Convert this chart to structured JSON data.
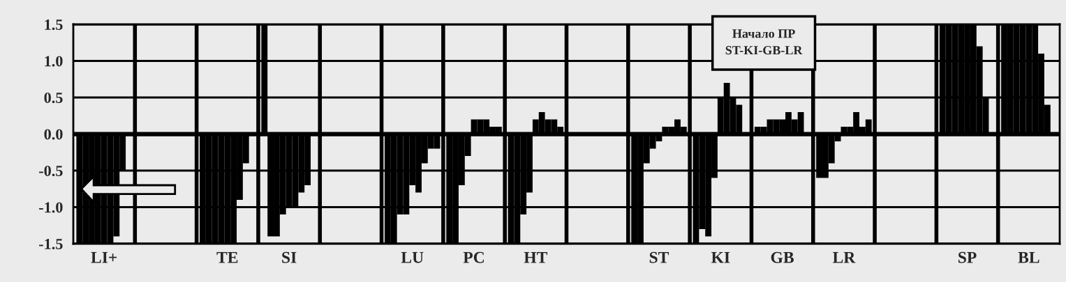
{
  "chart_data": {
    "type": "bar",
    "categories": [
      "LI+",
      null,
      "TE",
      "SI",
      null,
      "LU",
      "PC",
      "HT",
      null,
      "ST",
      "KI",
      "GB",
      "LR",
      null,
      "SP",
      "BL"
    ],
    "series": [
      {
        "color": "#000000",
        "values": [
          -1.5,
          null,
          -1.5,
          1.5,
          null,
          -1.5,
          -1.5,
          -1.5,
          null,
          -1.5,
          -1.5,
          0.1,
          -0.6,
          null,
          1.5,
          1.5
        ]
      },
      {
        "color": "#000000",
        "values": [
          -1.5,
          null,
          -1.5,
          -1.4,
          null,
          -1.5,
          -1.5,
          -1.5,
          null,
          -1.5,
          -1.3,
          0.1,
          -0.6,
          null,
          1.5,
          1.5
        ]
      },
      {
        "color": "#000000",
        "values": [
          -1.5,
          null,
          -1.5,
          -1.4,
          null,
          -1.1,
          -0.7,
          -1.1,
          null,
          -0.4,
          -1.4,
          0.2,
          -0.4,
          null,
          1.5,
          1.5
        ]
      },
      {
        "color": "#000000",
        "values": [
          -1.5,
          null,
          -1.5,
          -1.1,
          null,
          -1.1,
          -0.3,
          -0.8,
          null,
          -0.2,
          -0.6,
          0.2,
          -0.1,
          null,
          1.5,
          1.5
        ]
      },
      {
        "color": "#000000",
        "values": [
          -1.5,
          null,
          -1.5,
          -1.0,
          null,
          -0.7,
          0.2,
          0.2,
          null,
          -0.1,
          0.5,
          0.2,
          0.1,
          null,
          1.5,
          1.5
        ]
      },
      {
        "color": "#000000",
        "values": [
          -1.5,
          null,
          -1.5,
          -1.0,
          null,
          -0.8,
          0.2,
          0.3,
          null,
          0.1,
          0.7,
          0.3,
          0.1,
          null,
          1.5,
          1.5
        ]
      },
      {
        "color": "#000000",
        "values": [
          -1.4,
          null,
          -0.9,
          -0.8,
          null,
          -0.4,
          0.2,
          0.2,
          null,
          0.1,
          0.5,
          0.2,
          0.3,
          null,
          1.2,
          1.1
        ]
      },
      {
        "color": "#000000",
        "values": [
          -0.5,
          null,
          -0.4,
          -0.7,
          null,
          -0.2,
          0.1,
          0.2,
          null,
          0.2,
          0.4,
          0.3,
          0.1,
          null,
          0.5,
          0.4
        ]
      },
      {
        "color": "#000000",
        "values": [
          null,
          null,
          null,
          null,
          null,
          -0.2,
          0.1,
          0.1,
          null,
          0.1,
          null,
          null,
          0.2,
          null,
          null,
          null
        ]
      }
    ],
    "ylim": [
      -1.5,
      1.5
    ],
    "yticks": [
      {
        "value": -1.5,
        "label": "-1.5"
      },
      {
        "value": -1,
        "label": "-1.0"
      },
      {
        "value": -0.5,
        "label": "-0.5"
      },
      {
        "value": 0,
        "label": "0.0"
      },
      {
        "value": 0.5,
        "label": "0.5"
      },
      {
        "value": 1,
        "label": "1.0"
      },
      {
        "value": 1.5,
        "label": "1.5"
      }
    ],
    "grid": true,
    "ref_lines": [
      {
        "axis": "y",
        "value": 0,
        "color": "#000000"
      }
    ],
    "annotations": [
      "Начало ПР\nST-KI-GB-LR"
    ]
  }
}
